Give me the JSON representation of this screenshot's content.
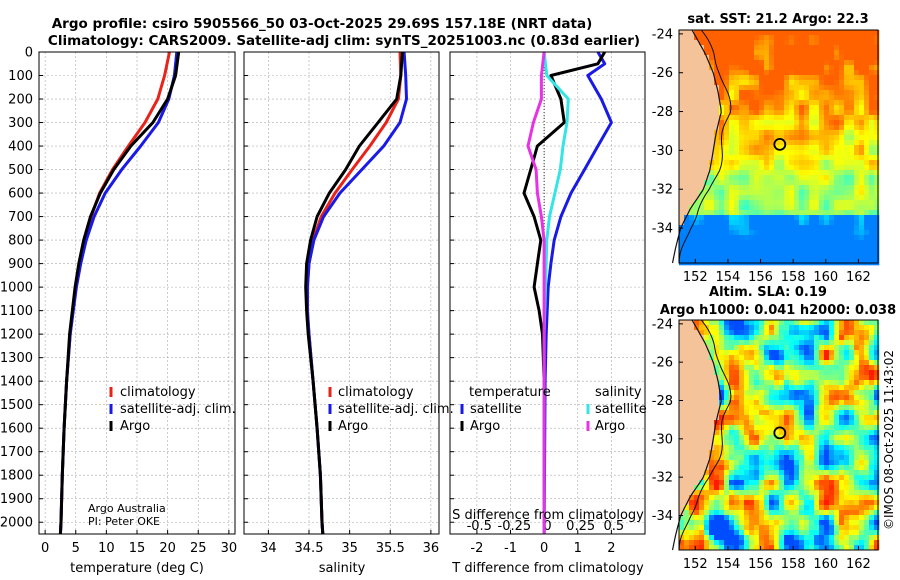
{
  "header": {
    "line1": "Argo profile: csiro 5905566_50 03-Oct-2025 29.69S 157.18E (NRT data)",
    "line2": "Climatology: CARS2009. Satellite-adj clim: synTS_20251003.nc (0.83d earlier)"
  },
  "credit": {
    "line1": "Argo Australia",
    "line2": "PI: Peter OKE"
  },
  "colors": {
    "climatology": "#e8231a",
    "satellite": "#1a1ae6",
    "argo": "#000000",
    "sal_satellite": "#33e5e5",
    "sal_argo": "#e633e6",
    "land": "#f5c39a"
  },
  "chart_data": [
    {
      "type": "line",
      "id": "temperature",
      "xlabel": "temperature (deg C)",
      "ylabel": "",
      "xlim": [
        -1,
        31
      ],
      "ylim": [
        2050,
        0
      ],
      "xticks": [
        "0",
        "5",
        "10",
        "15",
        "20",
        "25",
        "30"
      ],
      "yticks": [
        "0",
        "100",
        "200",
        "300",
        "400",
        "500",
        "600",
        "700",
        "800",
        "900",
        "1000",
        "1100",
        "1200",
        "1300",
        "1400",
        "1500",
        "1600",
        "1700",
        "1800",
        "1900",
        "2000"
      ],
      "legend": [
        "climatology",
        "satellite-adj. clim.",
        "Argo"
      ],
      "series": [
        {
          "name": "climatology",
          "depth": [
            0,
            100,
            200,
            300,
            400,
            500,
            600,
            700,
            800,
            900,
            1000,
            1200,
            1400,
            1600,
            1800,
            2000,
            2050
          ],
          "values": [
            20.3,
            19.5,
            18.4,
            16.3,
            13.6,
            11.0,
            8.9,
            7.5,
            6.4,
            5.6,
            5.0,
            4.1,
            3.5,
            3.1,
            2.8,
            2.6,
            2.5
          ]
        },
        {
          "name": "satellite-adj. clim.",
          "depth": [
            0,
            100,
            200,
            300,
            400,
            500,
            600,
            700,
            800,
            900,
            1000,
            1200,
            1400,
            1600,
            1800,
            2000,
            2050
          ],
          "values": [
            21.5,
            21.1,
            20.2,
            18.5,
            15.6,
            12.5,
            9.8,
            8.0,
            6.7,
            5.8,
            5.1,
            4.1,
            3.5,
            3.1,
            2.8,
            2.6,
            2.5
          ]
        },
        {
          "name": "Argo",
          "depth": [
            0,
            100,
            200,
            300,
            400,
            500,
            600,
            700,
            800,
            900,
            1000,
            1200,
            1400,
            1600,
            1800,
            2000,
            2050
          ],
          "values": [
            21.8,
            21.3,
            20.0,
            17.6,
            14.0,
            11.2,
            9.0,
            7.4,
            6.3,
            5.5,
            4.9,
            4.0,
            3.5,
            3.1,
            2.8,
            2.6,
            2.5
          ]
        }
      ]
    },
    {
      "type": "line",
      "id": "salinity",
      "xlabel": "salinity",
      "ylabel": "",
      "xlim": [
        33.7,
        36.1
      ],
      "ylim": [
        2050,
        0
      ],
      "xticks": [
        "34",
        "34.5",
        "35",
        "35.5",
        "36"
      ],
      "legend": [
        "climatology",
        "satellite-adj. clim.",
        "Argo"
      ],
      "series": [
        {
          "name": "climatology",
          "depth": [
            0,
            100,
            200,
            300,
            400,
            500,
            600,
            700,
            800,
            900,
            1000,
            1100,
            1200,
            1400,
            1600,
            1800,
            2000,
            2050
          ],
          "values": [
            35.62,
            35.63,
            35.6,
            35.45,
            35.25,
            35.03,
            34.82,
            34.65,
            34.55,
            34.5,
            34.48,
            34.48,
            34.5,
            34.55,
            34.6,
            34.64,
            34.66,
            34.67
          ]
        },
        {
          "name": "satellite-adj. clim.",
          "depth": [
            0,
            100,
            200,
            300,
            400,
            500,
            600,
            700,
            800,
            900,
            1000,
            1100,
            1200,
            1400,
            1600,
            1800,
            2000,
            2050
          ],
          "values": [
            35.67,
            35.69,
            35.7,
            35.62,
            35.42,
            35.15,
            34.88,
            34.68,
            34.56,
            34.5,
            34.48,
            34.48,
            34.5,
            34.55,
            34.6,
            34.64,
            34.66,
            34.67
          ]
        },
        {
          "name": "Argo",
          "depth": [
            0,
            100,
            200,
            300,
            400,
            500,
            600,
            700,
            800,
            900,
            1000,
            1100,
            1200,
            1400,
            1600,
            1800,
            2000,
            2050
          ],
          "values": [
            35.65,
            35.63,
            35.58,
            35.35,
            35.12,
            34.95,
            34.75,
            34.6,
            34.52,
            34.47,
            34.46,
            34.47,
            34.49,
            34.55,
            34.6,
            34.64,
            34.66,
            34.67
          ]
        }
      ]
    },
    {
      "type": "line",
      "id": "difference",
      "xlabel": "T difference from climatology",
      "xlabel_top": "S difference from climatology",
      "xlim": [
        -2.8,
        3.0
      ],
      "ylim": [
        2050,
        0
      ],
      "xticks": [
        "-2",
        "-1",
        "0",
        "1",
        "2"
      ],
      "xticks_top": [
        "-0.5",
        "-0.25",
        "0",
        "0.25",
        "0.5"
      ],
      "legend_left_title": "temperature",
      "legend_right_title": "salinity",
      "legend_left": [
        "satellite",
        "Argo"
      ],
      "legend_right": [
        "satellite",
        "Argo"
      ],
      "series": [
        {
          "name": "temperature satellite",
          "depth": [
            0,
            50,
            100,
            200,
            300,
            400,
            500,
            600,
            700,
            800,
            900,
            1000,
            1200,
            1400,
            1600,
            1800,
            2000,
            2050
          ],
          "values": [
            1.6,
            1.8,
            1.3,
            1.7,
            2.0,
            1.6,
            1.2,
            0.8,
            0.5,
            0.3,
            0.2,
            0.12,
            0.06,
            0.03,
            0.02,
            0.01,
            0.0,
            0.0
          ]
        },
        {
          "name": "temperature Argo",
          "depth": [
            0,
            50,
            100,
            200,
            300,
            400,
            500,
            600,
            700,
            800,
            900,
            1000,
            1100,
            1200,
            1400,
            1600,
            1800,
            2000,
            2050
          ],
          "values": [
            1.8,
            1.6,
            0.2,
            0.5,
            0.6,
            -0.2,
            -0.4,
            -0.6,
            -0.3,
            -0.1,
            -0.2,
            -0.3,
            -0.15,
            -0.05,
            0.0,
            0.0,
            0.0,
            0.0,
            0.0
          ]
        },
        {
          "name": "salinity satellite",
          "depth": [
            0,
            100,
            200,
            300,
            400,
            500,
            600,
            700,
            800,
            1000,
            1200,
            1400,
            1600,
            1800,
            2000,
            2050
          ],
          "values": [
            0.0,
            0.02,
            0.18,
            0.17,
            0.14,
            0.12,
            0.08,
            0.04,
            0.02,
            0.01,
            0.0,
            0.0,
            0.0,
            0.0,
            0.0,
            0.0
          ]
        },
        {
          "name": "salinity Argo",
          "depth": [
            0,
            100,
            200,
            300,
            400,
            500,
            600,
            700,
            800,
            1000,
            1200,
            1400,
            1600,
            1800,
            2000,
            2050
          ],
          "values": [
            0.0,
            -0.02,
            -0.02,
            -0.08,
            -0.12,
            -0.06,
            -0.05,
            -0.02,
            0.0,
            0.0,
            0.0,
            0.0,
            0.0,
            0.0,
            0.0,
            0.0
          ]
        }
      ]
    },
    {
      "type": "heatmap",
      "id": "sst_map",
      "title": "sat. SST: 21.2 Argo: 22.3",
      "xticks": [
        "152",
        "154",
        "156",
        "158",
        "160",
        "162"
      ],
      "yticks": [
        "-24",
        "-26",
        "-28",
        "-30",
        "-32",
        "-34"
      ],
      "xlim": [
        151,
        163.2
      ],
      "ylim": [
        -35.8,
        -23.8
      ],
      "float_location": {
        "lon": 157.18,
        "lat": -29.69
      }
    },
    {
      "type": "heatmap",
      "id": "sla_map",
      "title": "Altim. SLA: 0.19",
      "subtitle": "Argo h1000: 0.041 h2000: 0.038",
      "xticks": [
        "152",
        "154",
        "156",
        "158",
        "160",
        "162"
      ],
      "yticks": [
        "-24",
        "-26",
        "-28",
        "-30",
        "-32",
        "-34"
      ],
      "xlim": [
        151,
        163.2
      ],
      "ylim": [
        -35.8,
        -23.8
      ],
      "float_location": {
        "lon": 157.18,
        "lat": -29.69
      }
    }
  ],
  "timestamp": "©IMOS 08-Oct-2025 11:43:02"
}
